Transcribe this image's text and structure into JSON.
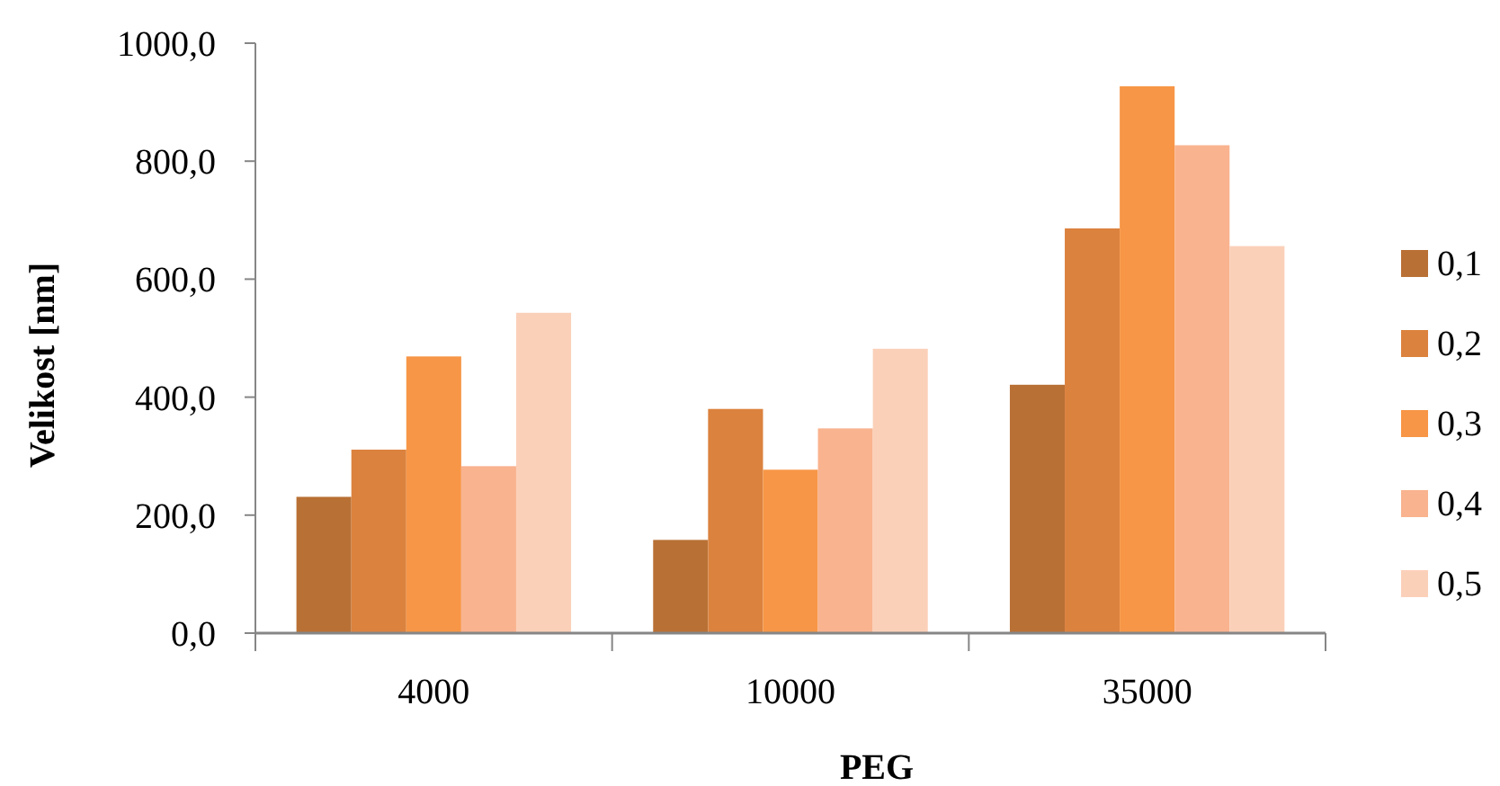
{
  "chart_data": {
    "type": "bar",
    "xlabel": "PEG",
    "ylabel": "Velikost [nm]",
    "categories": [
      "4000",
      "10000",
      "35000"
    ],
    "series": [
      {
        "name": "0,1",
        "color": "#b97034",
        "values": [
          231,
          158,
          421
        ]
      },
      {
        "name": "0,2",
        "color": "#db823e",
        "values": [
          311,
          380,
          686
        ]
      },
      {
        "name": "0,3",
        "color": "#f79646",
        "values": [
          469,
          277,
          927
        ]
      },
      {
        "name": "0,4",
        "color": "#f9b38f",
        "values": [
          283,
          347,
          827
        ]
      },
      {
        "name": "0,5",
        "color": "#fbd0b9",
        "values": [
          543,
          482,
          656
        ]
      }
    ],
    "ylim": [
      0,
      1000
    ],
    "yticks": [
      {
        "value": 0,
        "label": "0,0"
      },
      {
        "value": 200,
        "label": "200,0"
      },
      {
        "value": 400,
        "label": "400,0"
      },
      {
        "value": 600,
        "label": "600,0"
      },
      {
        "value": 800,
        "label": "800,0"
      },
      {
        "value": 1000,
        "label": "1000,0"
      }
    ],
    "grid": false,
    "legend": "right"
  }
}
